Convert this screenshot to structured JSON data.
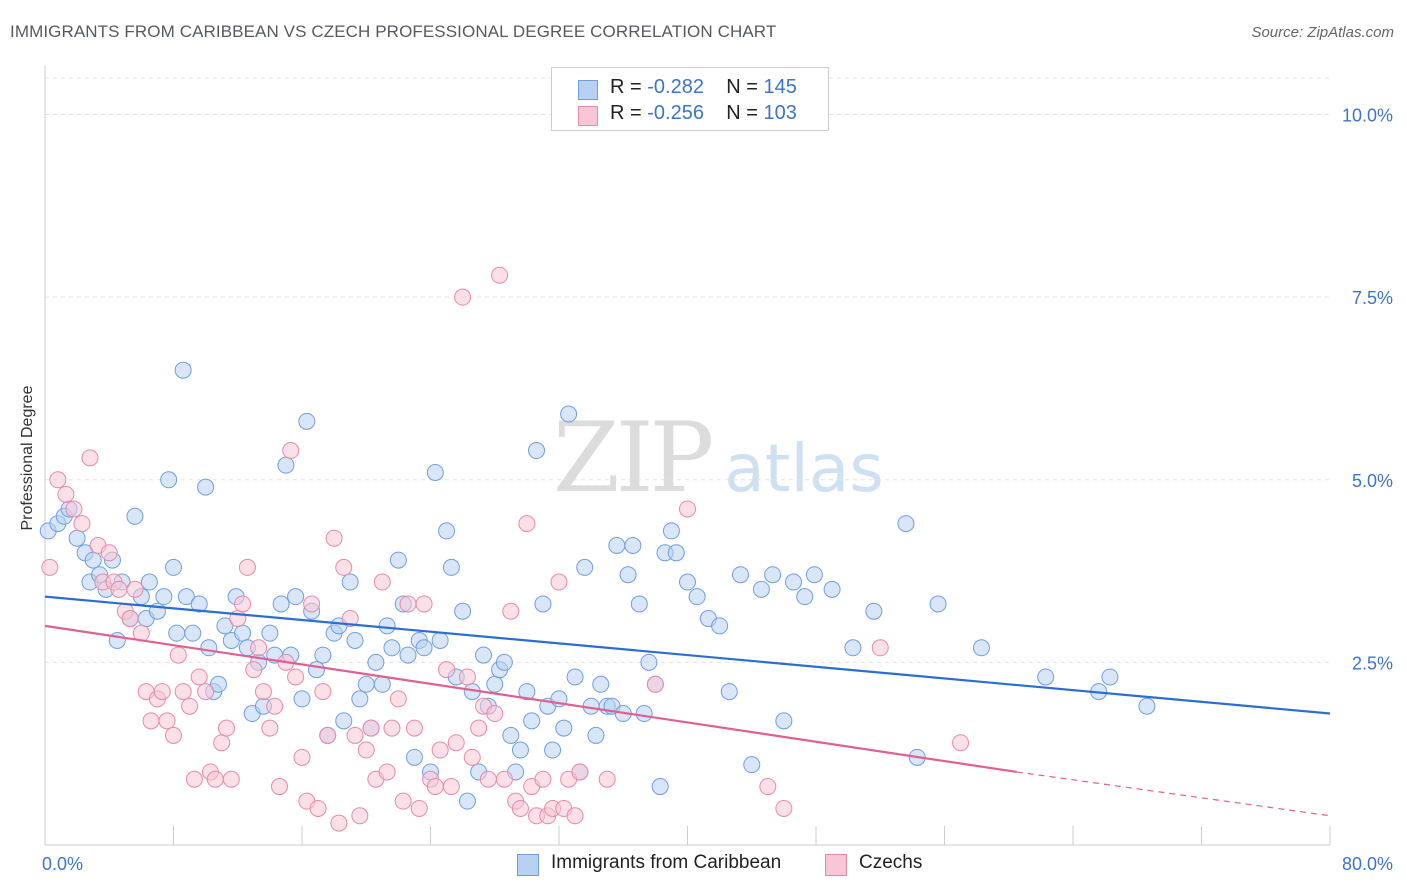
{
  "title": "IMMIGRANTS FROM CARIBBEAN VS CZECH PROFESSIONAL DEGREE CORRELATION CHART",
  "source": "Source: ZipAtlas.com",
  "watermark": {
    "zip": "ZIP",
    "atlas": "atlas"
  },
  "legend": {
    "rows": [
      {
        "r_label": "R = ",
        "r_value": "-0.282",
        "n_label": "N = ",
        "n_value": "145",
        "fill": "#b8d1f2",
        "stroke": "#6f9ee0"
      },
      {
        "r_label": "R = ",
        "r_value": "-0.256",
        "n_label": "N = ",
        "n_value": "103",
        "fill": "#f8c6d6",
        "stroke": "#e68aa8"
      }
    ]
  },
  "bottom_legend": [
    {
      "label": "Immigrants from Caribbean",
      "fill": "#b8d1f2",
      "stroke": "#6f9ee0"
    },
    {
      "label": "Czechs",
      "fill": "#f8c6d6",
      "stroke": "#e68aa8"
    }
  ],
  "chart_data": {
    "type": "scatter",
    "title": "IMMIGRANTS FROM CARIBBEAN VS CZECH PROFESSIONAL DEGREE CORRELATION CHART",
    "xlabel": "",
    "ylabel": "Professional Degree",
    "xlim": [
      0,
      80
    ],
    "ylim": [
      0,
      10.5
    ],
    "x_tick_labels": [
      {
        "value": 0,
        "label": "0.0%"
      },
      {
        "value": 80,
        "label": "80.0%"
      }
    ],
    "y_ticks": [
      {
        "value": 2.5,
        "label": "2.5%"
      },
      {
        "value": 5.0,
        "label": "5.0%"
      },
      {
        "value": 7.5,
        "label": "7.5%"
      },
      {
        "value": 10.0,
        "label": "10.0%"
      }
    ],
    "grid": true,
    "legend_position": "top-center",
    "series": [
      {
        "name": "Immigrants from Caribbean",
        "color": "#6f9ee0",
        "fill": "#b8d1f2",
        "trend": {
          "x": [
            0,
            80
          ],
          "y": [
            3.4,
            1.8
          ],
          "color": "#2a6fd0"
        },
        "points": [
          [
            0.2,
            4.3
          ],
          [
            0.8,
            4.4
          ],
          [
            1.2,
            4.5
          ],
          [
            1.5,
            4.6
          ],
          [
            2.0,
            4.2
          ],
          [
            2.5,
            4.0
          ],
          [
            2.8,
            3.6
          ],
          [
            3.0,
            3.9
          ],
          [
            3.4,
            3.7
          ],
          [
            3.8,
            3.5
          ],
          [
            4.2,
            3.9
          ],
          [
            4.5,
            2.8
          ],
          [
            4.8,
            3.6
          ],
          [
            5.3,
            3.1
          ],
          [
            5.6,
            4.5
          ],
          [
            6.0,
            3.4
          ],
          [
            6.3,
            3.1
          ],
          [
            6.5,
            3.6
          ],
          [
            7.0,
            3.2
          ],
          [
            7.4,
            3.4
          ],
          [
            7.7,
            5.0
          ],
          [
            8.0,
            3.8
          ],
          [
            8.2,
            2.9
          ],
          [
            8.6,
            6.5
          ],
          [
            8.8,
            3.4
          ],
          [
            9.2,
            2.9
          ],
          [
            9.6,
            3.3
          ],
          [
            10.0,
            4.9
          ],
          [
            10.2,
            2.7
          ],
          [
            10.5,
            2.1
          ],
          [
            10.8,
            2.2
          ],
          [
            11.2,
            3.0
          ],
          [
            11.6,
            2.8
          ],
          [
            11.9,
            3.4
          ],
          [
            12.3,
            2.9
          ],
          [
            12.6,
            2.7
          ],
          [
            12.9,
            1.8
          ],
          [
            13.3,
            2.5
          ],
          [
            13.6,
            1.9
          ],
          [
            14.0,
            2.9
          ],
          [
            14.3,
            2.6
          ],
          [
            14.7,
            3.3
          ],
          [
            15.0,
            5.2
          ],
          [
            15.3,
            2.6
          ],
          [
            15.6,
            3.4
          ],
          [
            16.0,
            2.0
          ],
          [
            16.3,
            5.8
          ],
          [
            16.6,
            3.2
          ],
          [
            16.9,
            2.4
          ],
          [
            17.3,
            2.6
          ],
          [
            17.6,
            1.5
          ],
          [
            18.0,
            2.9
          ],
          [
            18.3,
            3.0
          ],
          [
            18.6,
            1.7
          ],
          [
            19.0,
            3.6
          ],
          [
            19.3,
            2.8
          ],
          [
            19.6,
            2.0
          ],
          [
            20.0,
            2.2
          ],
          [
            20.3,
            1.6
          ],
          [
            20.6,
            2.5
          ],
          [
            21.0,
            2.2
          ],
          [
            21.3,
            3.0
          ],
          [
            21.6,
            2.7
          ],
          [
            22.0,
            3.9
          ],
          [
            22.3,
            3.3
          ],
          [
            22.6,
            2.6
          ],
          [
            23.0,
            1.2
          ],
          [
            23.3,
            2.8
          ],
          [
            23.6,
            2.7
          ],
          [
            24.0,
            1.0
          ],
          [
            24.3,
            5.1
          ],
          [
            24.6,
            2.8
          ],
          [
            25.0,
            4.3
          ],
          [
            25.3,
            3.8
          ],
          [
            25.6,
            2.3
          ],
          [
            26.0,
            3.2
          ],
          [
            26.3,
            0.6
          ],
          [
            26.6,
            2.1
          ],
          [
            27.0,
            1.0
          ],
          [
            27.3,
            2.6
          ],
          [
            27.6,
            1.9
          ],
          [
            28.0,
            2.2
          ],
          [
            28.3,
            2.4
          ],
          [
            28.6,
            2.5
          ],
          [
            29.0,
            1.5
          ],
          [
            29.3,
            1.0
          ],
          [
            29.6,
            1.3
          ],
          [
            30.0,
            2.1
          ],
          [
            30.3,
            1.7
          ],
          [
            30.6,
            5.4
          ],
          [
            31.0,
            3.3
          ],
          [
            31.3,
            1.9
          ],
          [
            31.6,
            1.3
          ],
          [
            32.0,
            2.0
          ],
          [
            32.3,
            1.6
          ],
          [
            32.6,
            5.9
          ],
          [
            33.0,
            2.3
          ],
          [
            33.3,
            1.0
          ],
          [
            33.6,
            3.8
          ],
          [
            34.0,
            1.9
          ],
          [
            34.3,
            1.5
          ],
          [
            34.6,
            2.2
          ],
          [
            35.0,
            1.9
          ],
          [
            35.3,
            1.9
          ],
          [
            35.6,
            4.1
          ],
          [
            36.0,
            1.8
          ],
          [
            36.3,
            3.7
          ],
          [
            36.6,
            4.1
          ],
          [
            37.0,
            3.3
          ],
          [
            37.3,
            1.8
          ],
          [
            37.6,
            2.5
          ],
          [
            38.0,
            2.2
          ],
          [
            38.3,
            0.8
          ],
          [
            38.6,
            4.0
          ],
          [
            39.0,
            4.3
          ],
          [
            39.3,
            4.0
          ],
          [
            40.0,
            3.6
          ],
          [
            40.6,
            3.4
          ],
          [
            41.3,
            3.1
          ],
          [
            42.0,
            3.0
          ],
          [
            42.6,
            2.1
          ],
          [
            43.3,
            3.7
          ],
          [
            44.0,
            1.1
          ],
          [
            44.6,
            3.5
          ],
          [
            45.3,
            3.7
          ],
          [
            46.0,
            1.7
          ],
          [
            46.6,
            3.6
          ],
          [
            47.3,
            3.4
          ],
          [
            47.9,
            3.7
          ],
          [
            49.0,
            3.5
          ],
          [
            50.3,
            2.7
          ],
          [
            51.6,
            3.2
          ],
          [
            53.6,
            4.4
          ],
          [
            54.3,
            1.2
          ],
          [
            55.6,
            3.3
          ],
          [
            58.3,
            2.7
          ],
          [
            62.3,
            2.3
          ],
          [
            65.6,
            2.1
          ],
          [
            66.3,
            2.3
          ],
          [
            68.6,
            1.9
          ]
        ]
      },
      {
        "name": "Czechs",
        "color": "#e68aa8",
        "fill": "#f8c6d6",
        "trend": {
          "x": [
            0,
            60.5
          ],
          "y": [
            3.0,
            1.0
          ],
          "color": "#e0608f",
          "dashed_x": [
            60.5,
            80
          ],
          "dashed_y": [
            1.0,
            0.4
          ]
        },
        "points": [
          [
            0.3,
            3.8
          ],
          [
            0.8,
            5.0
          ],
          [
            1.3,
            4.8
          ],
          [
            1.8,
            4.6
          ],
          [
            2.3,
            4.4
          ],
          [
            2.8,
            5.3
          ],
          [
            3.3,
            4.1
          ],
          [
            3.6,
            3.6
          ],
          [
            4.0,
            4.0
          ],
          [
            4.3,
            3.6
          ],
          [
            4.6,
            3.5
          ],
          [
            5.0,
            3.2
          ],
          [
            5.3,
            3.1
          ],
          [
            5.6,
            3.5
          ],
          [
            6.0,
            2.9
          ],
          [
            6.3,
            2.1
          ],
          [
            6.6,
            1.7
          ],
          [
            7.0,
            2.0
          ],
          [
            7.3,
            2.1
          ],
          [
            7.6,
            1.7
          ],
          [
            8.0,
            1.5
          ],
          [
            8.3,
            2.6
          ],
          [
            8.6,
            2.1
          ],
          [
            9.0,
            1.9
          ],
          [
            9.3,
            0.9
          ],
          [
            9.6,
            2.3
          ],
          [
            10.0,
            2.1
          ],
          [
            10.3,
            1.0
          ],
          [
            10.6,
            0.9
          ],
          [
            11.0,
            1.4
          ],
          [
            11.3,
            1.6
          ],
          [
            11.6,
            0.9
          ],
          [
            12.0,
            3.1
          ],
          [
            12.3,
            3.3
          ],
          [
            12.6,
            3.8
          ],
          [
            13.0,
            2.4
          ],
          [
            13.3,
            2.7
          ],
          [
            13.6,
            2.1
          ],
          [
            14.0,
            1.6
          ],
          [
            14.3,
            1.9
          ],
          [
            14.6,
            0.8
          ],
          [
            15.0,
            2.5
          ],
          [
            15.3,
            5.4
          ],
          [
            15.6,
            2.3
          ],
          [
            16.0,
            1.2
          ],
          [
            16.3,
            0.6
          ],
          [
            16.6,
            3.3
          ],
          [
            17.0,
            0.5
          ],
          [
            17.3,
            2.1
          ],
          [
            17.6,
            1.5
          ],
          [
            18.0,
            4.2
          ],
          [
            18.3,
            0.3
          ],
          [
            18.6,
            3.8
          ],
          [
            19.0,
            3.1
          ],
          [
            19.3,
            1.5
          ],
          [
            19.6,
            0.4
          ],
          [
            20.0,
            1.3
          ],
          [
            20.3,
            1.6
          ],
          [
            20.6,
            0.9
          ],
          [
            21.0,
            3.6
          ],
          [
            21.3,
            1.0
          ],
          [
            21.6,
            1.6
          ],
          [
            22.0,
            2.0
          ],
          [
            22.3,
            0.6
          ],
          [
            22.6,
            3.3
          ],
          [
            23.0,
            1.6
          ],
          [
            23.3,
            0.5
          ],
          [
            23.6,
            3.3
          ],
          [
            24.0,
            0.9
          ],
          [
            24.3,
            0.8
          ],
          [
            24.6,
            1.3
          ],
          [
            25.0,
            2.4
          ],
          [
            25.3,
            0.8
          ],
          [
            25.6,
            1.4
          ],
          [
            26.0,
            7.5
          ],
          [
            26.3,
            2.3
          ],
          [
            26.6,
            1.2
          ],
          [
            27.0,
            1.6
          ],
          [
            27.3,
            1.9
          ],
          [
            27.6,
            0.9
          ],
          [
            28.0,
            1.8
          ],
          [
            28.3,
            7.8
          ],
          [
            28.6,
            0.9
          ],
          [
            29.0,
            3.2
          ],
          [
            29.3,
            0.6
          ],
          [
            29.6,
            0.5
          ],
          [
            30.0,
            4.4
          ],
          [
            30.3,
            0.8
          ],
          [
            30.6,
            0.4
          ],
          [
            31.0,
            0.9
          ],
          [
            31.3,
            0.4
          ],
          [
            31.6,
            0.5
          ],
          [
            32.0,
            3.6
          ],
          [
            32.3,
            0.5
          ],
          [
            32.6,
            0.9
          ],
          [
            33.0,
            0.4
          ],
          [
            33.3,
            1.0
          ],
          [
            35.0,
            0.9
          ],
          [
            38.0,
            2.2
          ],
          [
            40.0,
            4.6
          ],
          [
            45.0,
            0.8
          ],
          [
            46.0,
            0.5
          ],
          [
            52.0,
            2.7
          ],
          [
            57.0,
            1.4
          ]
        ]
      }
    ]
  }
}
